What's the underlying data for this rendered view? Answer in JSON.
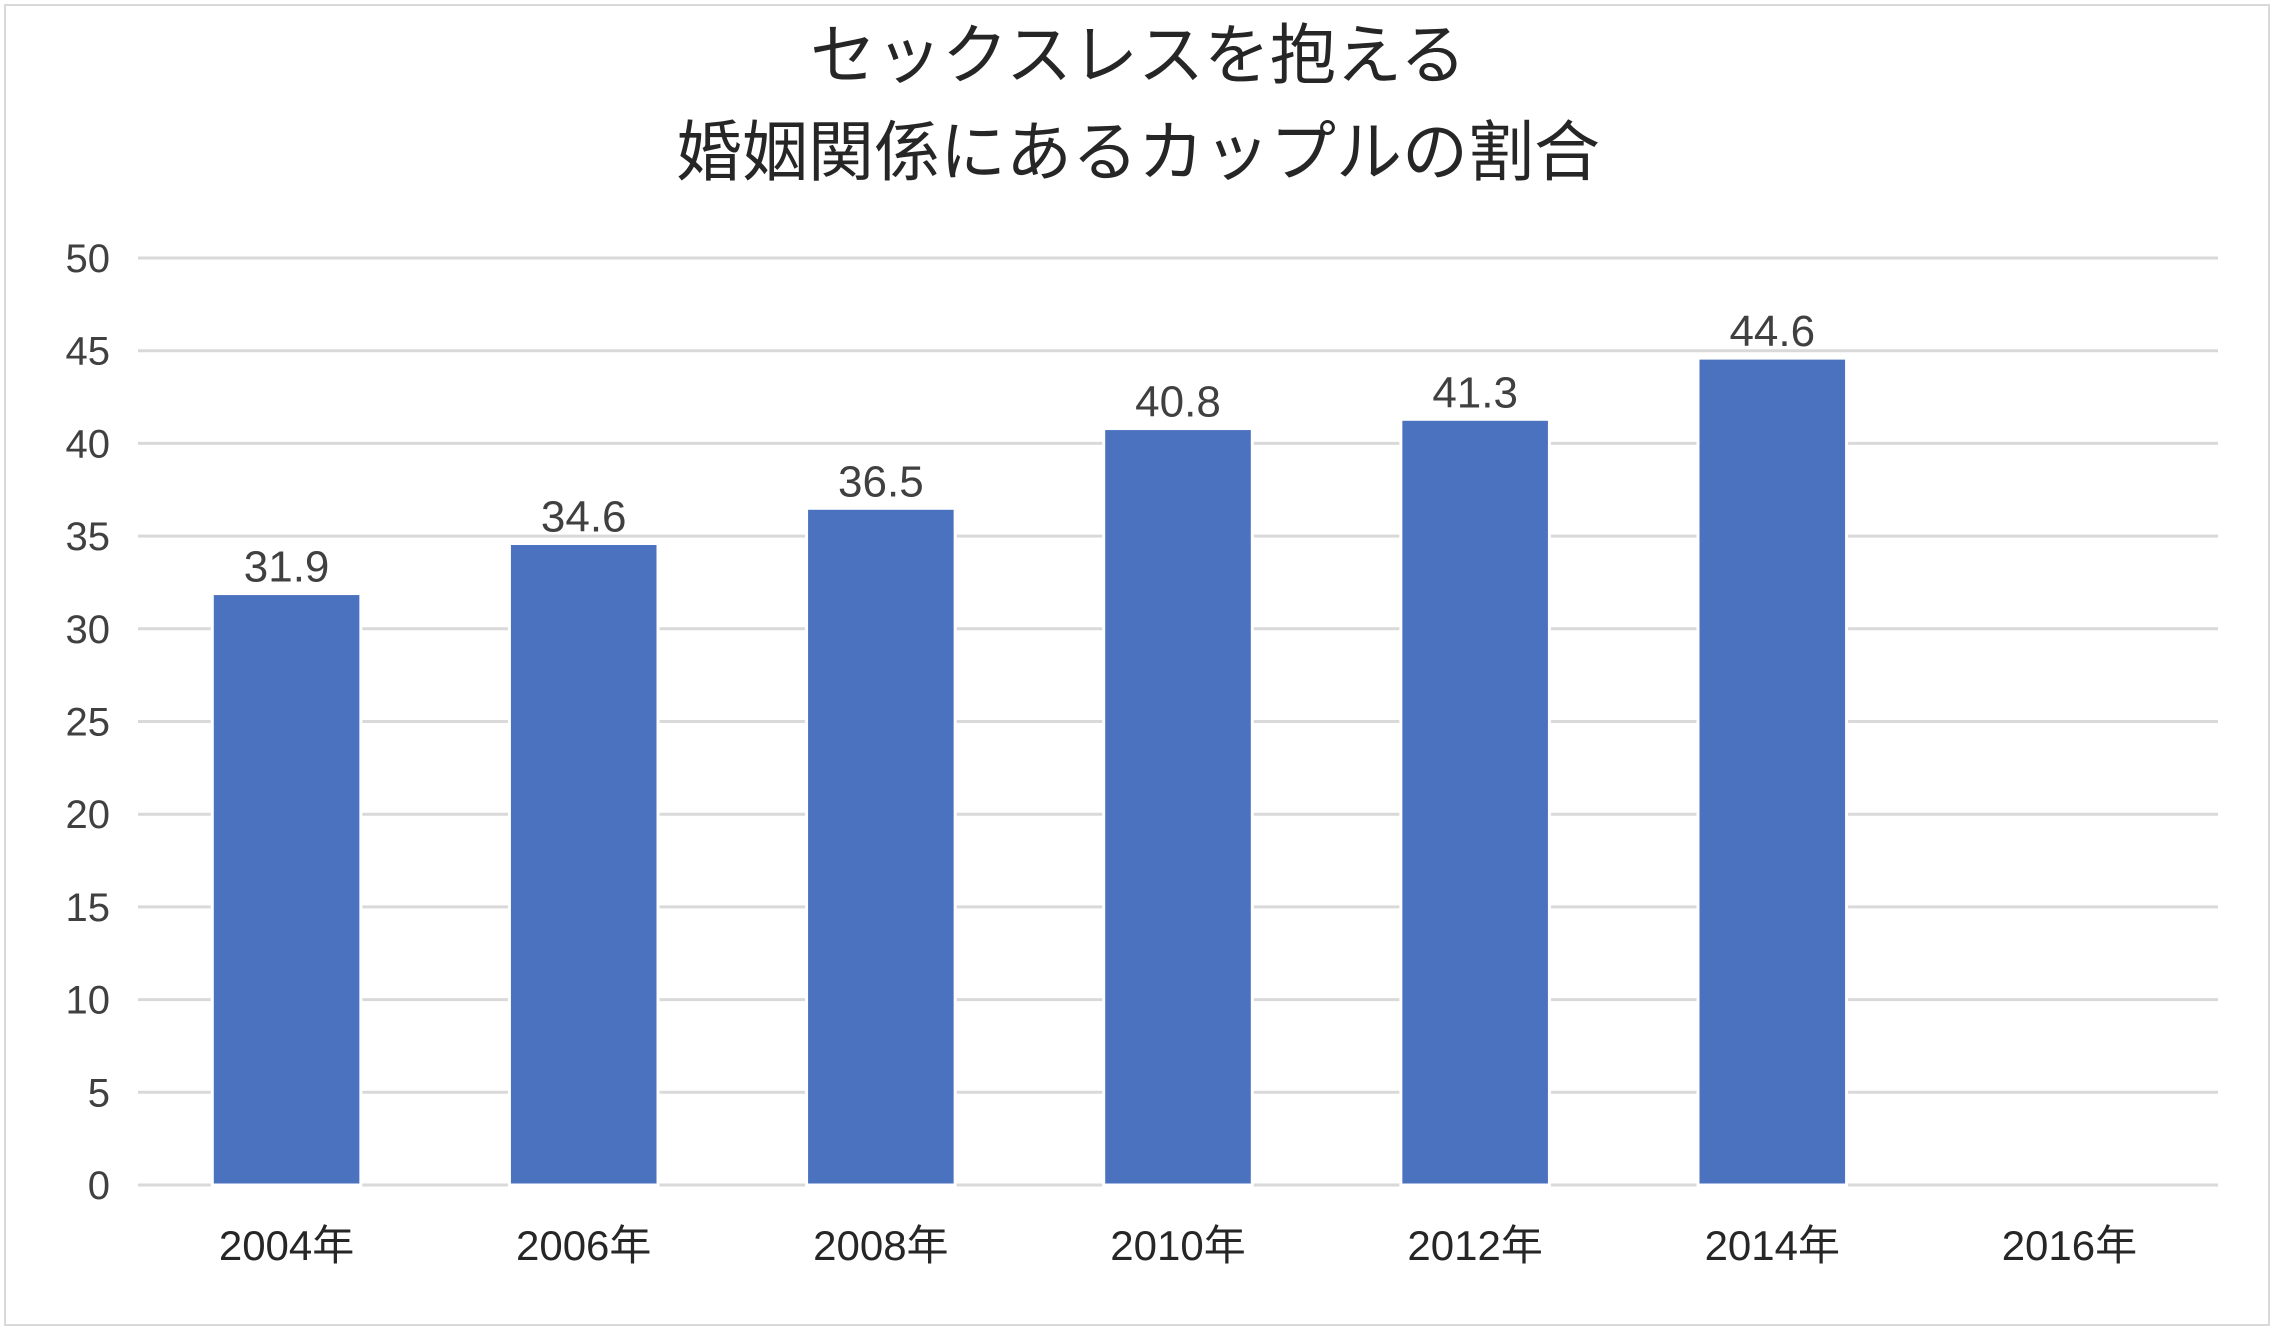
{
  "chart_data": {
    "type": "bar",
    "title": [
      "セックスレスを抱える",
      "婚姻関係にあるカップルの割合"
    ],
    "categories": [
      "2004年",
      "2006年",
      "2008年",
      "2010年",
      "2012年",
      "2014年",
      "2016年"
    ],
    "series": [
      {
        "values": [
          31.9,
          34.6,
          36.5,
          40.8,
          41.3,
          44.6,
          null
        ],
        "color": "#4a72bf"
      }
    ],
    "data_labels": [
      "31.9",
      "34.6",
      "36.5",
      "40.8",
      "41.3",
      "44.6",
      ""
    ],
    "ylim": [
      0,
      50
    ],
    "yticks": [
      0,
      5,
      10,
      15,
      20,
      25,
      30,
      35,
      40,
      45,
      50
    ],
    "grid": true,
    "gridline_color": "#d9d9d9",
    "xlabel": "",
    "ylabel": ""
  }
}
